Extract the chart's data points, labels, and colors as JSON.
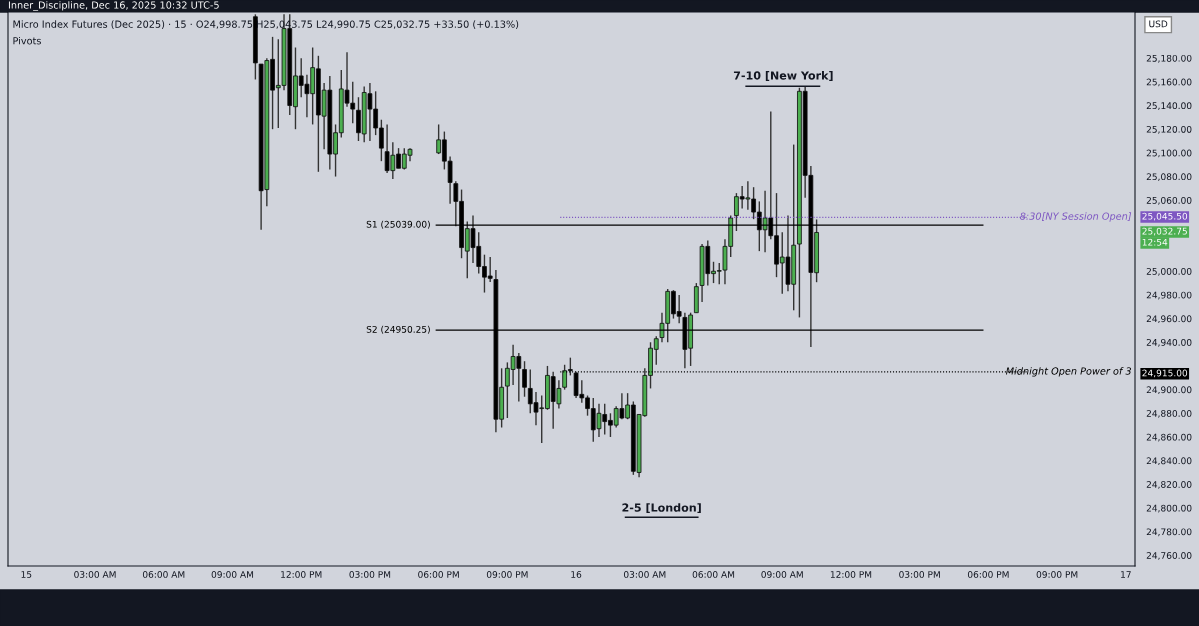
{
  "chart_data": {
    "type": "candlestick",
    "title": "Inner_Discipline, Dec 16, 2025 10:32 UTC-5",
    "subtitle": "Micro Index Futures (Dec 2025) · 15 · O24,998.75 H25,043.75 L24,990.75 C25,032.75 +33.50 (+0.13%)",
    "x": [
      "2025-12-15T10:00",
      "2025-12-15T10:15",
      "2025-12-15T10:30",
      "2025-12-15T10:45",
      "2025-12-15T11:00",
      "2025-12-15T11:15",
      "2025-12-15T11:30",
      "2025-12-15T11:45",
      "2025-12-15T12:00",
      "2025-12-15T12:15",
      "2025-12-15T12:30",
      "2025-12-15T12:45",
      "2025-12-15T13:00",
      "2025-12-15T13:15",
      "2025-12-15T13:30",
      "2025-12-15T13:45",
      "2025-12-15T14:00",
      "2025-12-15T14:15",
      "2025-12-15T14:30",
      "2025-12-15T14:45",
      "2025-12-15T15:00",
      "2025-12-15T15:15",
      "2025-12-15T15:30",
      "2025-12-15T15:45",
      "2025-12-15T16:00",
      "2025-12-15T16:15",
      "2025-12-15T16:30",
      "2025-12-15T16:45",
      "2025-12-15T18:00",
      "2025-12-15T18:15",
      "2025-12-15T18:30",
      "2025-12-15T18:45",
      "2025-12-15T19:00",
      "2025-12-15T19:15",
      "2025-12-15T19:30",
      "2025-12-15T19:45",
      "2025-12-15T20:00",
      "2025-12-15T20:15",
      "2025-12-15T20:30",
      "2025-12-15T20:45",
      "2025-12-15T21:00",
      "2025-12-15T21:15",
      "2025-12-15T21:30",
      "2025-12-15T21:45",
      "2025-12-15T22:00",
      "2025-12-15T22:15",
      "2025-12-15T22:30",
      "2025-12-15T22:45",
      "2025-12-15T23:00",
      "2025-12-15T23:15",
      "2025-12-15T23:30",
      "2025-12-15T23:45",
      "2025-12-16T00:00",
      "2025-12-16T00:15",
      "2025-12-16T00:30",
      "2025-12-16T00:45",
      "2025-12-16T01:00",
      "2025-12-16T01:15",
      "2025-12-16T01:30",
      "2025-12-16T01:45",
      "2025-12-16T02:00",
      "2025-12-16T02:15",
      "2025-12-16T02:30",
      "2025-12-16T02:45",
      "2025-12-16T03:00",
      "2025-12-16T03:15",
      "2025-12-16T03:30",
      "2025-12-16T03:45",
      "2025-12-16T04:00",
      "2025-12-16T04:15",
      "2025-12-16T04:30",
      "2025-12-16T04:45",
      "2025-12-16T05:00",
      "2025-12-16T05:15",
      "2025-12-16T05:30",
      "2025-12-16T05:45",
      "2025-12-16T06:00",
      "2025-12-16T06:15",
      "2025-12-16T06:30",
      "2025-12-16T06:45",
      "2025-12-16T07:00",
      "2025-12-16T07:15",
      "2025-12-16T07:30",
      "2025-12-16T07:45",
      "2025-12-16T08:00",
      "2025-12-16T08:15",
      "2025-12-16T08:30",
      "2025-12-16T08:45",
      "2025-12-16T09:00",
      "2025-12-16T09:15",
      "2025-12-16T09:30",
      "2025-12-16T09:45",
      "2025-12-16T10:00",
      "2025-12-16T10:15",
      "2025-12-16T10:30"
    ],
    "ohlc": [
      [
        25215,
        25217,
        25162,
        25176
      ],
      [
        25175,
        25175,
        25035,
        25068
      ],
      [
        25069,
        25180,
        25055,
        25178
      ],
      [
        25179,
        25198,
        25120,
        25153
      ],
      [
        25155,
        25196,
        25121,
        25157
      ],
      [
        25157,
        25217,
        25153,
        25205
      ],
      [
        25205,
        25217,
        25132,
        25140
      ],
      [
        25139,
        25189,
        25120,
        25165
      ],
      [
        25165,
        25180,
        25147,
        25157
      ],
      [
        25158,
        25166,
        25130,
        25150
      ],
      [
        25150,
        25189,
        25124,
        25172
      ],
      [
        25171,
        25182,
        25084,
        25132
      ],
      [
        25131,
        25159,
        25103,
        25153
      ],
      [
        25153,
        25165,
        25086,
        25099
      ],
      [
        25099,
        25124,
        25080,
        25117
      ],
      [
        25117,
        25170,
        25113,
        25154
      ],
      [
        25153,
        25185,
        25139,
        25142
      ],
      [
        25142,
        25160,
        25125,
        25137
      ],
      [
        25136,
        25147,
        25110,
        25117
      ],
      [
        25116,
        25156,
        25109,
        25151
      ],
      [
        25150,
        25159,
        25110,
        25137
      ],
      [
        25137,
        25152,
        25115,
        25121
      ],
      [
        25121,
        25128,
        25093,
        25104
      ],
      [
        25101,
        25124,
        25083,
        25085
      ],
      [
        25085,
        25109,
        25078,
        25098
      ],
      [
        25099,
        25104,
        25087,
        25087
      ],
      [
        25087,
        25104,
        25086,
        25099
      ],
      [
        25098,
        25104,
        25093,
        25103
      ],
      [
        25100,
        25124,
        25099,
        25111
      ],
      [
        25111,
        25118,
        25086,
        25093
      ],
      [
        25093,
        25097,
        25057,
        25075
      ],
      [
        25074,
        25076,
        25038,
        25059
      ],
      [
        25059,
        25069,
        25011,
        25020
      ],
      [
        25017,
        25042,
        24994,
        25036
      ],
      [
        25036,
        25047,
        25007,
        25020
      ],
      [
        25021,
        25033,
        24998,
        25004
      ],
      [
        25004,
        25014,
        24982,
        24995
      ],
      [
        24996,
        25012,
        24991,
        24994
      ],
      [
        24993,
        25001,
        24864,
        24875
      ],
      [
        24875,
        24918,
        24868,
        24902
      ],
      [
        24903,
        24923,
        24876,
        24918
      ],
      [
        24917,
        24938,
        24904,
        24928
      ],
      [
        24928,
        24931,
        24890,
        24918
      ],
      [
        24917,
        24924,
        24894,
        24902
      ],
      [
        24901,
        24917,
        24880,
        24888
      ],
      [
        24889,
        24898,
        24870,
        24881
      ],
      [
        24884,
        24895,
        24855,
        24884
      ],
      [
        24884,
        24920,
        24883,
        24912
      ],
      [
        24911,
        24915,
        24867,
        24890
      ],
      [
        24888,
        24908,
        24884,
        24901
      ],
      [
        24902,
        24921,
        24900,
        24916
      ],
      [
        24917,
        24927,
        24912,
        24916
      ],
      [
        24914,
        24915,
        24893,
        24895
      ],
      [
        24896,
        24908,
        24889,
        24893
      ],
      [
        24893,
        24895,
        24878,
        24884
      ],
      [
        24884,
        24893,
        24856,
        24866
      ],
      [
        24867,
        24888,
        24860,
        24880
      ],
      [
        24879,
        24888,
        24862,
        24873
      ],
      [
        24874,
        24880,
        24860,
        24870
      ],
      [
        24870,
        24886,
        24868,
        24884
      ],
      [
        24884,
        24897,
        24875,
        24876
      ],
      [
        24876,
        24897,
        24875,
        24887
      ],
      [
        24887,
        24890,
        24828,
        24831
      ],
      [
        24830,
        24879,
        24826,
        24879
      ],
      [
        24878,
        24918,
        24877,
        24912
      ],
      [
        24912,
        24940,
        24901,
        24935
      ],
      [
        24934,
        24945,
        24921,
        24943
      ],
      [
        24944,
        24965,
        24940,
        24956
      ],
      [
        24956,
        24985,
        24940,
        24983
      ],
      [
        24983,
        24984,
        24960,
        24964
      ],
      [
        24966,
        24980,
        24956,
        24962
      ],
      [
        24961,
        24965,
        24918,
        24934
      ],
      [
        24935,
        24965,
        24920,
        24963
      ],
      [
        24965,
        24990,
        24965,
        24987
      ],
      [
        24988,
        25023,
        24974,
        25021
      ],
      [
        25021,
        25026,
        24988,
        24998
      ],
      [
        24998,
        25008,
        24990,
        25000
      ],
      [
        25000,
        25007,
        24989,
        25000
      ],
      [
        25001,
        25027,
        24989,
        25021
      ],
      [
        25021,
        25047,
        25012,
        25045
      ],
      [
        25047,
        25066,
        25034,
        25063
      ],
      [
        25063,
        25072,
        25053,
        25061
      ],
      [
        25061,
        25076,
        25052,
        25062
      ],
      [
        25061,
        25071,
        25044,
        25050
      ],
      [
        25050,
        25059,
        25017,
        25035
      ],
      [
        25035,
        25068,
        25016,
        25045
      ],
      [
        25045,
        25135,
        25027,
        25030
      ],
      [
        25030,
        25066,
        24995,
        25006
      ],
      [
        25007,
        25033,
        24981,
        25012
      ],
      [
        25012,
        25047,
        24983,
        24989
      ],
      [
        24989,
        25107,
        24967,
        25022
      ],
      [
        25023,
        25155,
        24961,
        25152
      ],
      [
        25152,
        25156,
        25062,
        25081
      ],
      [
        25081,
        25089,
        24936,
        24999
      ],
      [
        24998.75,
        25043.75,
        24990.75,
        25032.75
      ]
    ],
    "xlim": [
      "2025-12-14T23:12",
      "2025-12-17T00:24"
    ],
    "xticks": [
      {
        "value": "2025-12-15",
        "label": "15"
      },
      {
        "value": "2025-12-15T03:00",
        "label": "03:00 AM"
      },
      {
        "value": "2025-12-15T06:00",
        "label": "06:00 AM"
      },
      {
        "value": "2025-12-15T09:00",
        "label": "09:00 AM"
      },
      {
        "value": "2025-12-15T12:00",
        "label": "12:00 PM"
      },
      {
        "value": "2025-12-15T15:00",
        "label": "03:00 PM"
      },
      {
        "value": "2025-12-15T18:00",
        "label": "06:00 PM"
      },
      {
        "value": "2025-12-15T21:00",
        "label": "09:00 PM"
      },
      {
        "value": "2025-12-16",
        "label": "16"
      },
      {
        "value": "2025-12-16T03:00",
        "label": "03:00 AM"
      },
      {
        "value": "2025-12-16T06:00",
        "label": "06:00 AM"
      },
      {
        "value": "2025-12-16T09:00",
        "label": "09:00 AM"
      },
      {
        "value": "2025-12-16T12:00",
        "label": "12:00 PM"
      },
      {
        "value": "2025-12-16T15:00",
        "label": "03:00 PM"
      },
      {
        "value": "2025-12-16T18:00",
        "label": "06:00 PM"
      },
      {
        "value": "2025-12-16T21:00",
        "label": "09:00 PM"
      },
      {
        "value": "2025-12-17",
        "label": "17"
      }
    ],
    "ylim": [
      24751,
      25219
    ],
    "yticks": [
      {
        "value": 24760,
        "label": "24,760.00"
      },
      {
        "value": 24780,
        "label": "24,780.00"
      },
      {
        "value": 24800,
        "label": "24,800.00"
      },
      {
        "value": 24820,
        "label": "24,820.00"
      },
      {
        "value": 24840,
        "label": "24,840.00"
      },
      {
        "value": 24860,
        "label": "24,860.00"
      },
      {
        "value": 24880,
        "label": "24,880.00"
      },
      {
        "value": 24900,
        "label": "24,900.00"
      },
      {
        "value": 24940,
        "label": "24,940.00"
      },
      {
        "value": 24960,
        "label": "24,960.00"
      },
      {
        "value": 24980,
        "label": "24,980.00"
      },
      {
        "value": 25000,
        "label": "25,000.00"
      },
      {
        "value": 25060,
        "label": "25,060.00"
      },
      {
        "value": 25080,
        "label": "25,080.00"
      },
      {
        "value": 25100,
        "label": "25,100.00"
      },
      {
        "value": 25120,
        "label": "25,120.00"
      },
      {
        "value": 25140,
        "label": "25,140.00"
      },
      {
        "value": 25160,
        "label": "25,160.00"
      },
      {
        "value": 25180,
        "label": "25,180.00"
      }
    ],
    "grid": false,
    "ref_lines": [
      {
        "axis": "y",
        "value": 25039,
        "label": "S1 (25039.00)",
        "color": "#000000",
        "line_style": "solid"
      },
      {
        "axis": "y",
        "value": 24950.25,
        "label": "S2 (24950.25)",
        "color": "#000000",
        "line_style": "solid"
      },
      {
        "axis": "y",
        "value": 25045.5,
        "color": "#7e57c2",
        "line_style": "dotted"
      },
      {
        "axis": "y",
        "value": 24915,
        "label": "Midnight Open Power of 3",
        "color": "#000000",
        "line_style": "dotted"
      }
    ],
    "annotations": [
      "Pivots",
      "USD",
      "7-10 [New York]",
      "2-5 [London]",
      "25,045.50",
      "25,032.75",
      "12:54",
      "24,915.00",
      "8:30[NY Session Open]"
    ]
  }
}
